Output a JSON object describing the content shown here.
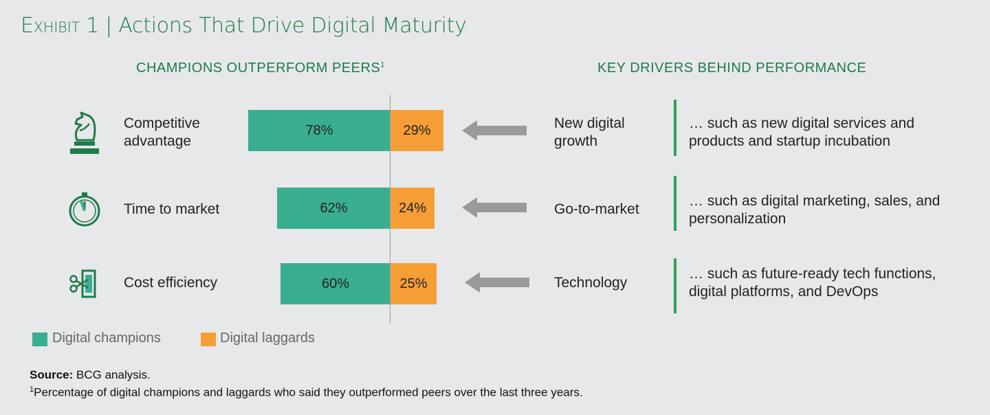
{
  "title": {
    "prefix": "Exhibit 1",
    "separator": "|",
    "text": "Actions That Drive Digital Maturity"
  },
  "left_header": "CHAMPIONS OUTPERFORM PEERS",
  "left_header_sup": "1",
  "right_header": "KEY DRIVERS BEHIND PERFORMANCE",
  "colors": {
    "champions": "#3aae90",
    "laggards": "#f59e36",
    "accent": "#1f7a4a",
    "divider": "#2fa45b",
    "arrow": "#9a9a9a"
  },
  "rows": [
    {
      "category": "Competitive advantage",
      "icon": "chess-knight-icon",
      "champions": "78%",
      "laggards": "29%",
      "driver": "New digital growth",
      "description": "… such as new digital services and products and startup incubation"
    },
    {
      "category": "Time to market",
      "icon": "clock-icon",
      "champions": "62%",
      "laggards": "24%",
      "driver": "Go-to-market",
      "description": "… such as digital marketing, sales, and personalization"
    },
    {
      "category": "Cost efficiency",
      "icon": "scissors-money-icon",
      "champions": "60%",
      "laggards": "25%",
      "driver": "Technology",
      "description": "… such as future-ready tech functions, digital platforms, and DevOps"
    }
  ],
  "legend": {
    "champions": "Digital champions",
    "laggards": "Digital laggards"
  },
  "source_label": "Source:",
  "source_text": "BCG analysis.",
  "footnote_mark": "1",
  "footnote": "Percentage of digital champions and laggards who said they outperformed peers over the last three years.",
  "chart_data": {
    "type": "bar",
    "orientation": "horizontal",
    "layout": "diverging",
    "categories": [
      "Competitive advantage",
      "Time to market",
      "Cost efficiency"
    ],
    "series": [
      {
        "name": "Digital champions",
        "values": [
          78,
          62,
          60
        ]
      },
      {
        "name": "Digital laggards",
        "values": [
          29,
          24,
          25
        ]
      }
    ],
    "unit": "%",
    "title": "CHAMPIONS OUTPERFORM PEERS",
    "legend_position": "bottom-left",
    "grid": false
  }
}
